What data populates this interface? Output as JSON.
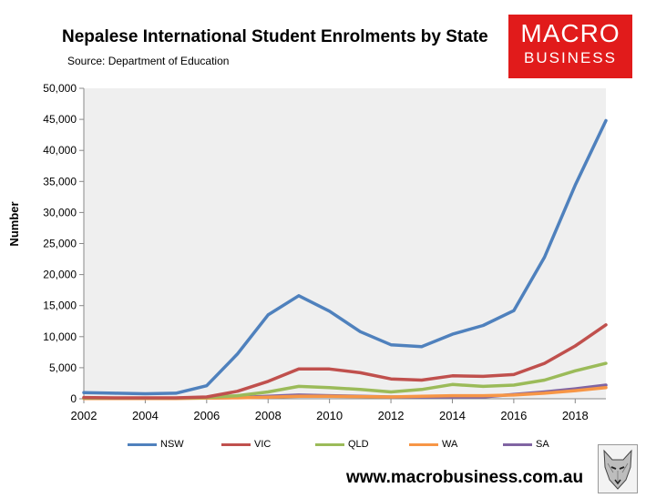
{
  "header": {
    "title": "Nepalese International Student Enrolments by State",
    "source": "Source: Department of Education"
  },
  "logo": {
    "line1": "MACRO",
    "line2": "BUSINESS",
    "color": "#e11b1b"
  },
  "footer": {
    "website": "www.macrobusiness.com.au"
  },
  "chart_data": {
    "type": "line",
    "title": "Nepalese International Student Enrolments by State",
    "subtitle": "Source: Department of Education",
    "xlabel": "",
    "ylabel": "Number",
    "x": [
      2002,
      2003,
      2004,
      2005,
      2006,
      2007,
      2008,
      2009,
      2010,
      2011,
      2012,
      2013,
      2014,
      2015,
      2016,
      2017,
      2018,
      2019
    ],
    "xlim": [
      2002,
      2019
    ],
    "ylim": [
      0,
      50000
    ],
    "xticks": [
      "2002",
      "2004",
      "2006",
      "2008",
      "2010",
      "2012",
      "2014",
      "2016",
      "2018"
    ],
    "xtick_values": [
      2002,
      2004,
      2006,
      2008,
      2010,
      2012,
      2014,
      2016,
      2018
    ],
    "yticks": [
      "0",
      "5,000",
      "10,000",
      "15,000",
      "20,000",
      "25,000",
      "30,000",
      "35,000",
      "40,000",
      "45,000",
      "50,000"
    ],
    "ytick_values": [
      0,
      5000,
      10000,
      15000,
      20000,
      25000,
      30000,
      35000,
      40000,
      45000,
      50000
    ],
    "grid": false,
    "legend_position": "bottom",
    "series": [
      {
        "name": "NSW",
        "color": "#4f81bd",
        "values": [
          1000,
          900,
          800,
          900,
          2100,
          7200,
          13500,
          16600,
          14100,
          10800,
          8700,
          8400,
          10400,
          11800,
          14200,
          22800,
          34400,
          44800
        ]
      },
      {
        "name": "VIC",
        "color": "#c0504d",
        "values": [
          200,
          150,
          150,
          150,
          300,
          1200,
          2800,
          4800,
          4800,
          4200,
          3200,
          3000,
          3700,
          3600,
          3900,
          5700,
          8500,
          11900
        ]
      },
      {
        "name": "QLD",
        "color": "#9bbb59",
        "values": [
          100,
          100,
          100,
          100,
          200,
          500,
          1100,
          2000,
          1800,
          1500,
          1100,
          1500,
          2300,
          2000,
          2200,
          3000,
          4500,
          5700
        ]
      },
      {
        "name": "WA",
        "color": "#f79646",
        "values": [
          50,
          50,
          50,
          50,
          100,
          150,
          250,
          400,
          400,
          350,
          300,
          400,
          500,
          500,
          600,
          900,
          1300,
          1800
        ]
      },
      {
        "name": "SA",
        "color": "#8064a2",
        "values": [
          100,
          100,
          100,
          100,
          100,
          200,
          400,
          600,
          500,
          400,
          300,
          300,
          300,
          300,
          700,
          1100,
          1600,
          2200
        ]
      }
    ]
  }
}
